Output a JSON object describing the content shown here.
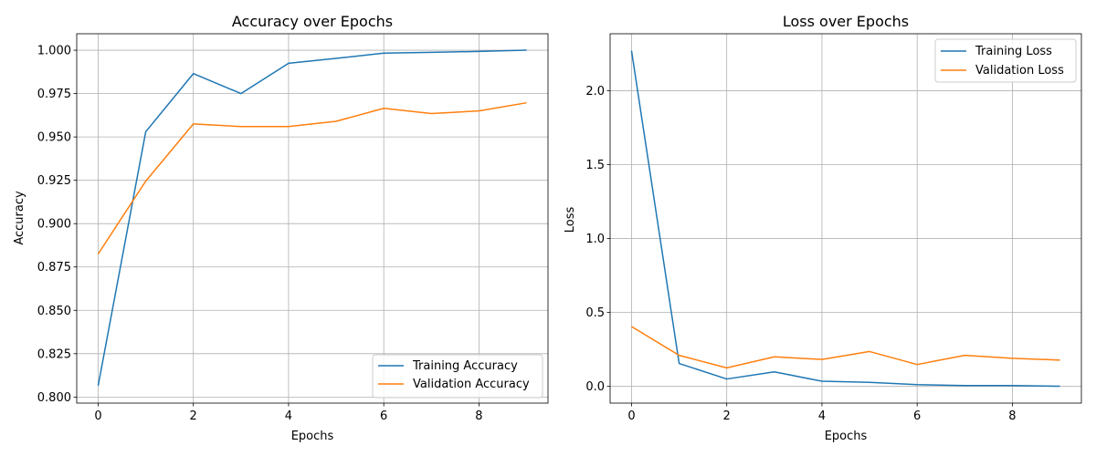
{
  "chart_data": [
    {
      "type": "line",
      "title": "Accuracy over Epochs",
      "xlabel": "Epochs",
      "ylabel": "Accuracy",
      "x": [
        0,
        1,
        2,
        3,
        4,
        5,
        6,
        7,
        8,
        9
      ],
      "xlim": [
        -0.45,
        9.45
      ],
      "ylim": [
        0.7965,
        1.0095
      ],
      "xticks": [
        0,
        2,
        4,
        6,
        8
      ],
      "xtick_labels": [
        "0",
        "2",
        "4",
        "6",
        "8"
      ],
      "yticks": [
        0.8,
        0.825,
        0.85,
        0.875,
        0.9,
        0.925,
        0.95,
        0.975,
        1.0
      ],
      "ytick_labels": [
        "0.800",
        "0.825",
        "0.850",
        "0.875",
        "0.900",
        "0.925",
        "0.950",
        "0.975",
        "1.000"
      ],
      "grid": true,
      "legend_position": "lower-right",
      "series": [
        {
          "name": "Training Accuracy",
          "color": "#1f77b4",
          "values": [
            0.8065,
            0.953,
            0.9865,
            0.975,
            0.9925,
            0.9953,
            0.9983,
            0.9988,
            0.9993,
            1.0
          ]
        },
        {
          "name": "Validation Accuracy",
          "color": "#ff7f0e",
          "values": [
            0.8825,
            0.9245,
            0.9575,
            0.956,
            0.956,
            0.959,
            0.9665,
            0.9635,
            0.965,
            0.9697
          ]
        }
      ]
    },
    {
      "type": "line",
      "title": "Loss over Epochs",
      "xlabel": "Epochs",
      "ylabel": "Loss",
      "x": [
        0,
        1,
        2,
        3,
        4,
        5,
        6,
        7,
        8,
        9
      ],
      "xlim": [
        -0.45,
        9.45
      ],
      "ylim": [
        -0.113,
        2.385
      ],
      "xticks": [
        0,
        2,
        4,
        6,
        8
      ],
      "xtick_labels": [
        "0",
        "2",
        "4",
        "6",
        "8"
      ],
      "yticks": [
        0.0,
        0.5,
        1.0,
        1.5,
        2.0
      ],
      "ytick_labels": [
        "0.0",
        "0.5",
        "1.0",
        "1.5",
        "2.0"
      ],
      "grid": true,
      "legend_position": "upper-right",
      "series": [
        {
          "name": "Training Loss",
          "color": "#1f77b4",
          "values": [
            2.27,
            0.155,
            0.05,
            0.098,
            0.035,
            0.027,
            0.012,
            0.006,
            0.006,
            0.001
          ]
        },
        {
          "name": "Validation Loss",
          "color": "#ff7f0e",
          "values": [
            0.405,
            0.21,
            0.125,
            0.2,
            0.182,
            0.236,
            0.148,
            0.21,
            0.19,
            0.178
          ]
        }
      ]
    }
  ]
}
